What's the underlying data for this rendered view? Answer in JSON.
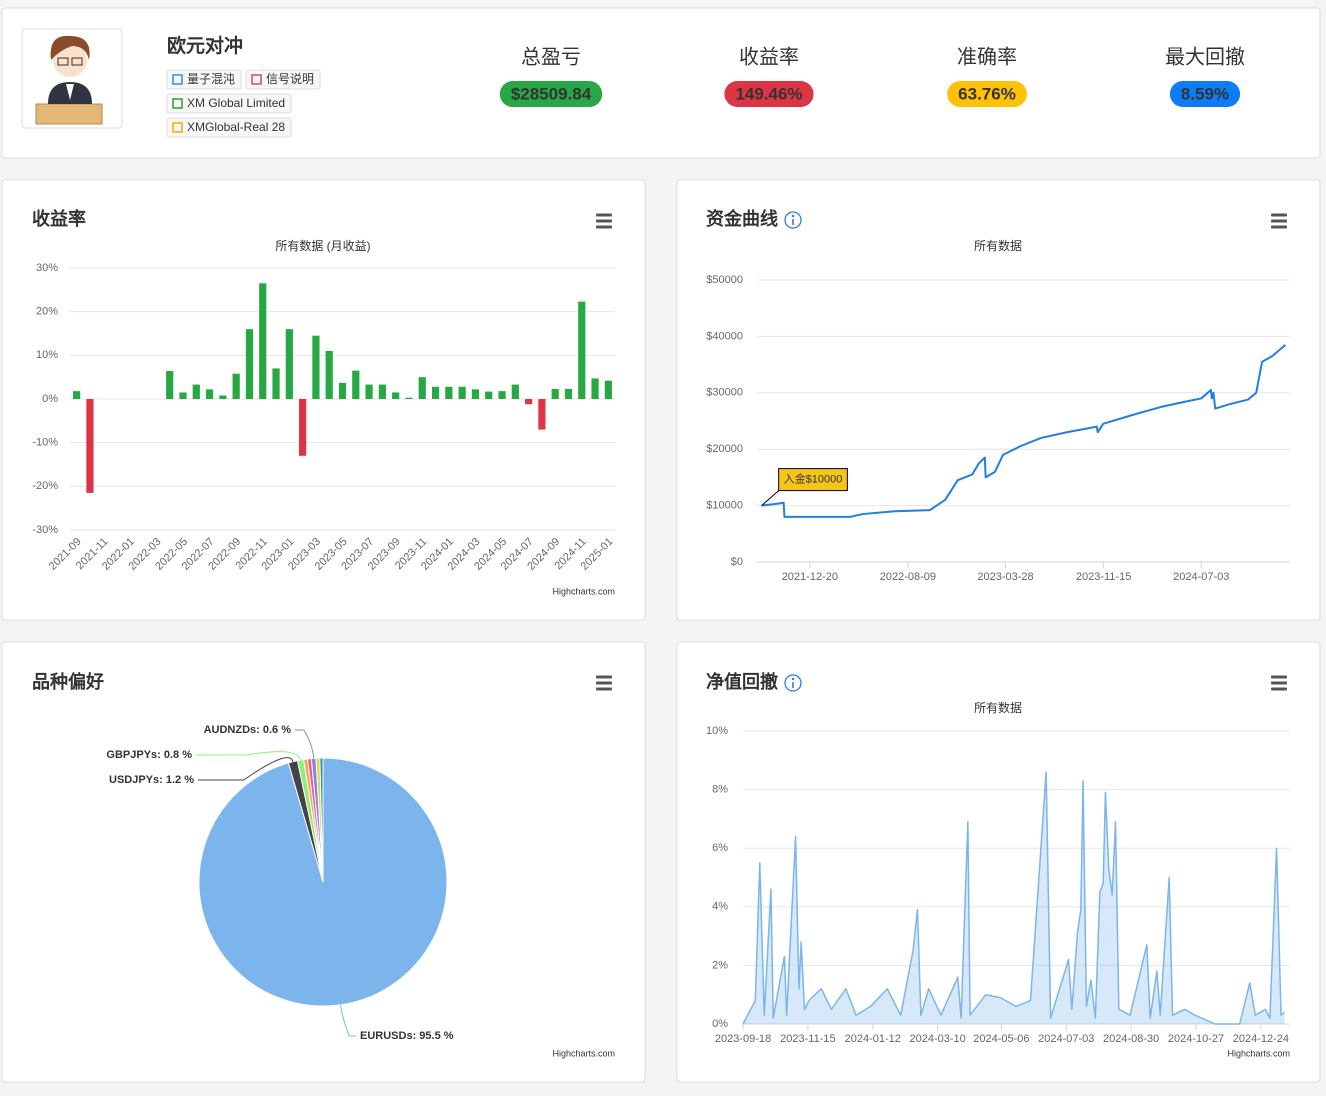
{
  "header": {
    "name": "欧元对冲",
    "tags": [
      "量子混沌",
      "信号说明",
      "XM Global Limited",
      "XMGlobal-Real 28"
    ],
    "stats": [
      {
        "label": "总盈亏",
        "value": "$28509.84",
        "color": "#28a745"
      },
      {
        "label": "收益率",
        "value": "149.46%",
        "color": "#dc3545"
      },
      {
        "label": "准确率",
        "value": "63.76%",
        "color": "#ffc107"
      },
      {
        "label": "最大回撤",
        "value": "8.59%",
        "color": "#0d7df5"
      }
    ]
  },
  "chart_data": [
    {
      "type": "bar",
      "title": "收益率",
      "subtitle": "所有数据 (月收益)",
      "credits": "Highcharts.com",
      "categories": [
        "2021-09",
        null,
        "2021-11",
        null,
        "2022-01",
        null,
        "2022-03",
        null,
        "2022-05",
        null,
        "2022-07",
        null,
        "2022-09",
        null,
        "2022-11",
        null,
        "2023-01",
        null,
        "2023-03",
        null,
        "2023-05",
        null,
        "2023-07",
        null,
        "2023-09",
        null,
        "2023-11",
        null,
        "2024-01",
        null,
        "2024-03",
        null,
        "2024-05",
        null,
        "2024-07",
        null,
        "2024-09",
        null,
        "2024-11",
        null,
        "2025-01"
      ],
      "values": [
        1.8,
        -21.5,
        0,
        0,
        0,
        0,
        0,
        6.4,
        1.5,
        3.3,
        2.2,
        0.8,
        5.8,
        16,
        26.5,
        7,
        16,
        -13,
        14.5,
        11,
        3.7,
        6.5,
        3.3,
        3.3,
        1.5,
        0.3,
        5,
        2.8,
        2.8,
        2.8,
        2.2,
        1.7,
        1.8,
        3.3,
        -1.2,
        -7,
        2.3,
        2.3,
        22.3,
        4.7,
        4.2
      ],
      "color": "#28a745",
      "negative_color": "#dc3545",
      "ylim": [
        -30,
        30
      ],
      "yticks": [
        {
          "value": -30,
          "label": "-30%"
        },
        {
          "value": -20,
          "label": "-20%"
        },
        {
          "value": -10,
          "label": "-10%"
        },
        {
          "value": 0,
          "label": "0%"
        },
        {
          "value": 10,
          "label": "10%"
        },
        {
          "value": 20,
          "label": "20%"
        },
        {
          "value": 30,
          "label": "30%"
        }
      ],
      "grid": true
    },
    {
      "type": "line",
      "title": "资金曲线",
      "subtitle": "所有数据",
      "x": [
        "2021-08-28",
        "2021-10-01",
        "2021-10-19",
        "2021-10-21",
        "2022-03-25",
        "2022-04-24",
        "2022-07-09",
        "2022-09-30",
        "2022-11-05",
        "2022-12-05",
        "2023-01-08",
        "2023-01-24",
        "2023-02-07",
        "2023-02-09",
        "2023-03-03",
        "2023-03-22",
        "2023-05-01",
        "2023-06-20",
        "2023-08-20",
        "2023-10-30",
        "2023-11-01",
        "2023-11-14",
        "2024-01-19",
        "2024-03-30",
        "2024-05-31",
        "2024-07-03",
        "2024-07-26",
        "2024-07-28",
        "2024-08-01",
        "2024-08-05",
        "2024-09-09",
        "2024-10-22",
        "2024-11-10",
        "2024-11-24",
        "2024-12-18",
        "2025-01-18"
      ],
      "values": [
        10000,
        10300,
        10500,
        8000,
        8000,
        8500,
        9000,
        9200,
        11000,
        14500,
        15500,
        17500,
        18500,
        15000,
        16000,
        19000,
        20500,
        22000,
        23000,
        24000,
        23000,
        24500,
        26000,
        27500,
        28500,
        29000,
        30500,
        29000,
        30000,
        27200,
        28000,
        28800,
        30000,
        35500,
        36500,
        38500
      ],
      "color": "#1f80e0",
      "xlim": [
        "2021-08-17",
        "2025-01-29"
      ],
      "xticks": [
        "2021-12-20",
        "2022-08-09",
        "2023-03-28",
        "2023-11-15",
        "2024-07-03"
      ],
      "ylim": [
        0,
        50000
      ],
      "yticks": [
        {
          "value": 0,
          "label": "$0"
        },
        {
          "value": 10000,
          "label": "$10000"
        },
        {
          "value": 20000,
          "label": "$20000"
        },
        {
          "value": 30000,
          "label": "$30000"
        },
        {
          "value": 40000,
          "label": "$40000"
        },
        {
          "value": 50000,
          "label": "$50000"
        }
      ],
      "grid": true,
      "annotations": [
        {
          "text": "入金$10000",
          "x": "2021-08-28",
          "y": 10000
        }
      ]
    },
    {
      "type": "pie",
      "title": "品种偏好",
      "credits": "Highcharts.com",
      "values": [
        95.5,
        1.2,
        0.8,
        0.5,
        0.5,
        0.6,
        0.5,
        0.4
      ],
      "value_labels": [
        "EURUSDs: 95.5 %",
        "USDJPYs: 1.2 %",
        "GBPJPYs: 0.8 %",
        null,
        null,
        "AUDNZDs: 0.6 %",
        null,
        null
      ],
      "colors": [
        "#7cb5ec",
        "#434348",
        "#90ed7d",
        "#f7a35c",
        "#f15c80",
        "#8085e9",
        "#e4d354",
        "#2b908f"
      ]
    },
    {
      "type": "area",
      "title": "净值回撤",
      "subtitle": "所有数据",
      "credits": "Highcharts.com",
      "x": [
        "2023-09-18",
        "2023-09-29",
        "2023-10-03",
        "2023-10-07",
        "2023-10-13",
        "2023-10-15",
        "2023-10-25",
        "2023-10-27",
        "2023-11-04",
        "2023-11-07",
        "2023-11-09",
        "2023-11-12",
        "2023-11-16",
        "2023-11-27",
        "2023-12-06",
        "2023-12-19",
        "2023-12-28",
        "2024-01-10",
        "2024-01-25",
        "2024-02-06",
        "2024-02-17",
        "2024-02-21",
        "2024-02-24",
        "2024-03-02",
        "2024-03-13",
        "2024-03-28",
        "2024-03-31",
        "2024-04-06",
        "2024-04-08",
        "2024-04-22",
        "2024-05-05",
        "2024-05-19",
        "2024-06-01",
        "2024-06-15",
        "2024-06-19",
        "2024-07-05",
        "2024-07-08",
        "2024-07-13",
        "2024-07-16",
        "2024-07-18",
        "2024-07-21",
        "2024-07-25",
        "2024-07-29",
        "2024-08-02",
        "2024-08-05",
        "2024-08-07",
        "2024-08-10",
        "2024-08-13",
        "2024-08-16",
        "2024-08-19",
        "2024-08-29",
        "2024-09-13",
        "2024-09-16",
        "2024-09-22",
        "2024-09-25",
        "2024-10-03",
        "2024-10-06",
        "2024-10-17",
        "2024-10-26",
        "2024-11-13",
        "2024-12-05",
        "2024-12-14",
        "2024-12-19",
        "2024-12-28",
        "2025-01-01",
        "2025-01-07",
        "2025-01-11",
        "2025-01-14"
      ],
      "values": [
        0,
        0.8,
        5.5,
        0.3,
        4.6,
        0.2,
        2.3,
        0.3,
        6.4,
        1.2,
        2.8,
        0.5,
        0.8,
        1.2,
        0.5,
        1.2,
        0.3,
        0.6,
        1.2,
        0.3,
        2.5,
        3.9,
        0.3,
        1.2,
        0.3,
        1.6,
        0.2,
        6.9,
        0.3,
        1.0,
        0.9,
        0.6,
        0.8,
        8.6,
        0.2,
        2.2,
        0.5,
        3.1,
        3.9,
        8.3,
        0.6,
        1.5,
        0.2,
        4.5,
        4.8,
        7.9,
        5.3,
        4.4,
        6.9,
        0.5,
        0.3,
        2.7,
        0.2,
        1.8,
        0.3,
        5.0,
        0.3,
        0.5,
        0.3,
        0,
        0,
        1.4,
        0.3,
        0.5,
        0.2,
        6.0,
        0.3,
        0.4
      ],
      "color": "#7cb5ec",
      "xlim": [
        "2023-09-18",
        "2025-01-19"
      ],
      "xticks": [
        "2023-09-18",
        "2023-11-15",
        "2024-01-12",
        "2024-03-10",
        "2024-05-06",
        "2024-07-03",
        "2024-08-30",
        "2024-10-27",
        "2024-12-24"
      ],
      "ylim": [
        0,
        10
      ],
      "yticks": [
        {
          "value": 0,
          "label": "0%"
        },
        {
          "value": 2,
          "label": "2%"
        },
        {
          "value": 4,
          "label": "4%"
        },
        {
          "value": 6,
          "label": "6%"
        },
        {
          "value": 8,
          "label": "8%"
        },
        {
          "value": 10,
          "label": "10%"
        }
      ],
      "grid": true
    }
  ]
}
